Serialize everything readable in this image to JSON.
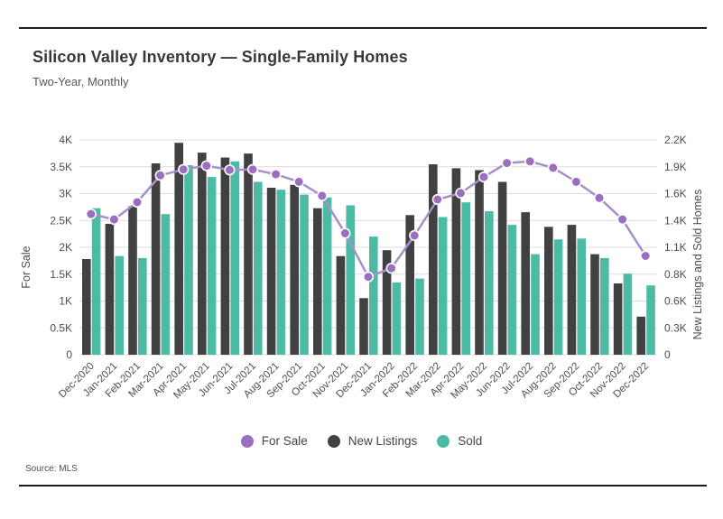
{
  "header": {
    "title": "Silicon Valley Inventory — Single-Family Homes",
    "subtitle": "Two-Year, Monthly"
  },
  "footer": {
    "source": "Source: MLS"
  },
  "legend": {
    "items": [
      {
        "label": "For Sale",
        "color": "#9b6fbf"
      },
      {
        "label": "New Listings",
        "color": "#414141"
      },
      {
        "label": "Sold",
        "color": "#4dbaa6"
      }
    ]
  },
  "chart_data": {
    "type": "bar",
    "subtype": "grouped bars + line overlay, dual y-axis",
    "title": "Silicon Valley Inventory — Single-Family Homes",
    "subtitle": "Two-Year, Monthly",
    "grid": true,
    "legend_position": "bottom",
    "categories": [
      "Dec-2020",
      "Jan-2021",
      "Feb-2021",
      "Mar-2021",
      "Apr-2021",
      "May-2021",
      "Jun-2021",
      "Jul-2021",
      "Aug-2021",
      "Sep-2021",
      "Oct-2021",
      "Nov-2021",
      "Dec-2021",
      "Jan-2022",
      "Feb-2022",
      "Mar-2022",
      "Apr-2022",
      "May-2022",
      "Jun-2022",
      "Jul-2022",
      "Aug-2022",
      "Sep-2022",
      "Oct-2022",
      "Nov-2022",
      "Dec-2022"
    ],
    "left_axis": {
      "label": "For Sale",
      "min": 0,
      "max": 4000,
      "tick_labels": [
        "0",
        "0.5K",
        "1K",
        "1.5K",
        "2K",
        "2.5K",
        "3K",
        "3.5K",
        "4K"
      ]
    },
    "right_axis": {
      "label": "New Listings and Sold Homes",
      "min": 0,
      "max": 2200,
      "tick_labels": [
        "0",
        "0.3K",
        "0.6K",
        "0.8K",
        "1.1K",
        "1.4K",
        "1.6K",
        "1.9K",
        "2.2K"
      ]
    },
    "series": [
      {
        "name": "For Sale",
        "type": "line",
        "axis": "left",
        "color": "#a78fc9",
        "marker_color": "#9b6fbf",
        "values": [
          2620,
          2520,
          2840,
          3340,
          3450,
          3520,
          3440,
          3450,
          3360,
          3220,
          2960,
          2260,
          1450,
          1610,
          2220,
          2890,
          3010,
          3310,
          3570,
          3600,
          3480,
          3220,
          2920,
          2520,
          1840
        ]
      },
      {
        "name": "New Listings",
        "type": "bar",
        "axis": "right",
        "color": "#414141",
        "values": [
          980,
          1340,
          1520,
          1960,
          2170,
          2070,
          2020,
          2060,
          1710,
          1740,
          1500,
          1010,
          580,
          1070,
          1430,
          1950,
          1910,
          1890,
          1770,
          1460,
          1310,
          1330,
          1030,
          730,
          390
        ]
      },
      {
        "name": "Sold",
        "type": "bar",
        "axis": "right",
        "color": "#4dbaa6",
        "values": [
          1500,
          1010,
          990,
          1440,
          1940,
          1820,
          1980,
          1770,
          1690,
          1640,
          1610,
          1530,
          1210,
          740,
          780,
          1410,
          1560,
          1470,
          1330,
          1030,
          1180,
          1190,
          990,
          830,
          710
        ]
      }
    ],
    "colors": {
      "grid": "#dcdcdc",
      "text": "#4d4d4d"
    }
  }
}
